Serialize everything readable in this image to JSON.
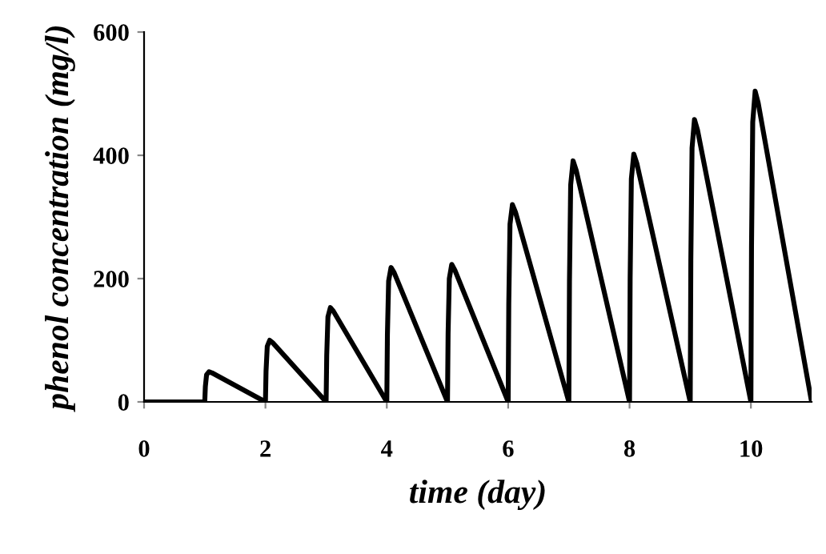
{
  "chart_data": {
    "type": "line",
    "xlabel": "time (day)",
    "ylabel": "phenol concentration (mg/l)",
    "xlim": [
      0,
      11
    ],
    "xticks": [
      0,
      2,
      4,
      6,
      8,
      10
    ],
    "ylim": [
      0,
      600
    ],
    "yticks": [
      0,
      200,
      400,
      600
    ],
    "grid": false,
    "legend": false,
    "marker": "none",
    "line_style": "solid",
    "series": [
      {
        "color": "#000000",
        "x": [
          0,
          1,
          1.01,
          1.03,
          1.07,
          1.12,
          2,
          2.01,
          2.03,
          2.07,
          2.12,
          3,
          3.01,
          3.03,
          3.07,
          3.12,
          4,
          4.01,
          4.03,
          4.07,
          4.12,
          5,
          5.01,
          5.03,
          5.07,
          5.12,
          6,
          6.01,
          6.03,
          6.07,
          6.12,
          7,
          7.01,
          7.03,
          7.07,
          7.12,
          8,
          8.01,
          8.03,
          8.07,
          8.12,
          9,
          9.01,
          9.03,
          9.07,
          9.12,
          10,
          10.01,
          10.03,
          10.07,
          10.12,
          11
        ],
        "values": [
          0,
          0,
          25,
          44,
          49,
          47,
          0,
          50,
          90,
          100,
          96,
          0,
          76,
          138,
          153,
          147,
          0,
          109,
          196,
          218,
          210,
          0,
          111,
          200,
          223,
          214,
          0,
          160,
          288,
          320,
          308,
          0,
          195,
          352,
          391,
          376,
          0,
          201,
          362,
          402,
          387,
          0,
          229,
          412,
          458,
          441,
          0,
          252,
          454,
          504,
          485,
          0
        ]
      }
    ]
  }
}
